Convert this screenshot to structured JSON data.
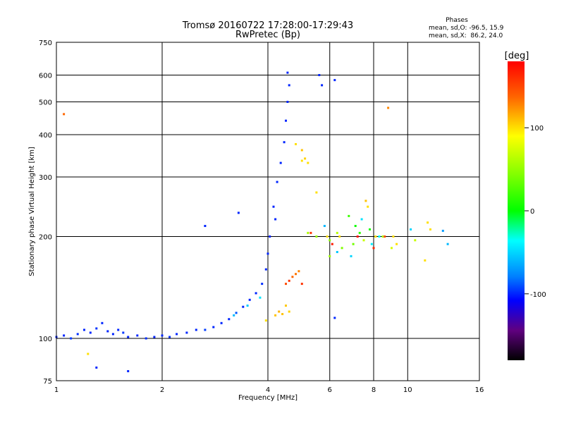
{
  "chart_data": {
    "type": "scatter",
    "title": "Tromsø 20160722 17:28:00-17:29:43",
    "subtitle": "RwPretec (Bp)",
    "xlabel": "Frequency [MHz]",
    "ylabel": "Stationary phase Virtual Height [km]",
    "x_scale": "log",
    "y_scale": "log",
    "xlim": [
      1,
      16
    ],
    "ylim": [
      75,
      750
    ],
    "x_ticks": [
      "1",
      "2",
      "4",
      "6",
      "8",
      "10",
      "16"
    ],
    "y_ticks": [
      "75",
      "100",
      "200",
      "300",
      "400",
      "500",
      "600",
      "750"
    ],
    "grid": true,
    "stats": {
      "heading": "Phases",
      "line_o": "mean, sd,O: -96.5, 15.9",
      "line_x": "mean, sd,X:  86.2, 24.0"
    },
    "colorbar": {
      "label": "[deg]",
      "ticks": [
        "100",
        "0",
        "-100"
      ],
      "tick_values": [
        100,
        0,
        -100
      ],
      "range": [
        -180,
        180
      ]
    },
    "series": [
      {
        "points": [
          [
            1.0,
            101,
            -100
          ],
          [
            1.05,
            102,
            -100
          ],
          [
            1.1,
            100,
            -95
          ],
          [
            1.15,
            103,
            -98
          ],
          [
            1.2,
            106,
            -100
          ],
          [
            1.25,
            104,
            -100
          ],
          [
            1.3,
            107,
            -97
          ],
          [
            1.35,
            111,
            -100
          ],
          [
            1.4,
            105,
            -100
          ],
          [
            1.45,
            103,
            -100
          ],
          [
            1.5,
            106,
            -100
          ],
          [
            1.55,
            104,
            -96
          ],
          [
            1.6,
            101,
            -100
          ],
          [
            1.7,
            102,
            -100
          ],
          [
            1.8,
            100,
            -98
          ],
          [
            1.9,
            101,
            -100
          ],
          [
            2.0,
            102,
            -100
          ],
          [
            2.1,
            101,
            -97
          ],
          [
            2.2,
            103,
            -100
          ],
          [
            2.35,
            104,
            -100
          ],
          [
            2.5,
            106,
            -100
          ],
          [
            2.65,
            106,
            -95
          ],
          [
            2.8,
            108,
            -100
          ],
          [
            2.95,
            111,
            -100
          ],
          [
            3.1,
            114,
            -100
          ],
          [
            3.25,
            119,
            -90
          ],
          [
            3.4,
            124,
            -100
          ],
          [
            3.55,
            130,
            -100
          ],
          [
            3.7,
            136,
            -100
          ],
          [
            3.85,
            145,
            -98
          ],
          [
            3.95,
            160,
            -100
          ],
          [
            4.0,
            178,
            -100
          ],
          [
            4.05,
            200,
            -100
          ],
          [
            4.15,
            245,
            -100
          ],
          [
            4.25,
            290,
            -100
          ],
          [
            4.35,
            330,
            -100
          ],
          [
            4.45,
            380,
            -100
          ],
          [
            4.5,
            440,
            -100
          ],
          [
            4.55,
            500,
            -100
          ],
          [
            4.6,
            560,
            -100
          ],
          [
            4.55,
            610,
            -100
          ],
          [
            4.2,
            225,
            -100
          ],
          [
            3.3,
            235,
            -100
          ],
          [
            2.65,
            215,
            -100
          ],
          [
            5.6,
            600,
            -100
          ],
          [
            5.7,
            560,
            -100
          ],
          [
            6.2,
            580,
            -100
          ],
          [
            1.3,
            82,
            -100
          ],
          [
            1.6,
            80,
            -100
          ],
          [
            6.2,
            115,
            -100
          ]
        ]
      },
      {
        "points": [
          [
            3.2,
            117,
            -60
          ],
          [
            3.5,
            125,
            -55
          ],
          [
            3.8,
            132,
            -45
          ],
          [
            4.5,
            145,
            150
          ],
          [
            4.6,
            148,
            160
          ],
          [
            4.7,
            152,
            140
          ],
          [
            4.8,
            155,
            135
          ],
          [
            4.9,
            158,
            130
          ],
          [
            5.0,
            145,
            160
          ],
          [
            4.3,
            120,
            115
          ],
          [
            4.4,
            118,
            110
          ],
          [
            4.6,
            120,
            105
          ],
          [
            4.5,
            125,
            108
          ],
          [
            4.2,
            117,
            110
          ],
          [
            3.95,
            113,
            100
          ],
          [
            5.0,
            335,
            100
          ],
          [
            5.1,
            340,
            105
          ],
          [
            5.2,
            330,
            100
          ],
          [
            5.0,
            360,
            110
          ],
          [
            5.5,
            270,
            100
          ],
          [
            4.8,
            375,
            100
          ],
          [
            5.9,
            200,
            100
          ],
          [
            6.4,
            200,
            100
          ],
          [
            7.6,
            255,
            110
          ],
          [
            7.7,
            245,
            100
          ],
          [
            8.1,
            200,
            100
          ],
          [
            9.1,
            200,
            100
          ],
          [
            9.3,
            190,
            100
          ],
          [
            11.4,
            220,
            100
          ],
          [
            11.6,
            210,
            100
          ],
          [
            1.05,
            460,
            140
          ],
          [
            8.8,
            480,
            130
          ],
          [
            1.23,
            90,
            100
          ],
          [
            11.2,
            170,
            100
          ]
        ]
      },
      {
        "points": [
          [
            5.2,
            205,
            60
          ],
          [
            5.5,
            200,
            55
          ],
          [
            6.0,
            195,
            50
          ],
          [
            6.5,
            185,
            45
          ],
          [
            7.0,
            190,
            40
          ],
          [
            7.3,
            205,
            15
          ],
          [
            7.8,
            210,
            10
          ],
          [
            6.8,
            230,
            20
          ],
          [
            7.1,
            215,
            5
          ],
          [
            7.5,
            195,
            70
          ],
          [
            6.3,
            205,
            65
          ],
          [
            8.5,
            200,
            60
          ],
          [
            9.0,
            185,
            75
          ],
          [
            10.5,
            195,
            70
          ],
          [
            6.0,
            175,
            55
          ]
        ]
      },
      {
        "points": [
          [
            5.8,
            215,
            -60
          ],
          [
            6.3,
            180,
            -55
          ],
          [
            6.9,
            175,
            -50
          ],
          [
            7.4,
            225,
            -45
          ],
          [
            7.9,
            190,
            -40
          ],
          [
            8.3,
            200,
            -35
          ],
          [
            12.6,
            208,
            -70
          ],
          [
            13.0,
            190,
            -60
          ],
          [
            10.2,
            210,
            -50
          ]
        ]
      },
      {
        "points": [
          [
            5.3,
            205,
            160
          ],
          [
            6.1,
            190,
            170
          ],
          [
            7.2,
            200,
            175
          ],
          [
            8.0,
            185,
            165
          ],
          [
            8.6,
            200,
            150
          ]
        ]
      }
    ]
  }
}
